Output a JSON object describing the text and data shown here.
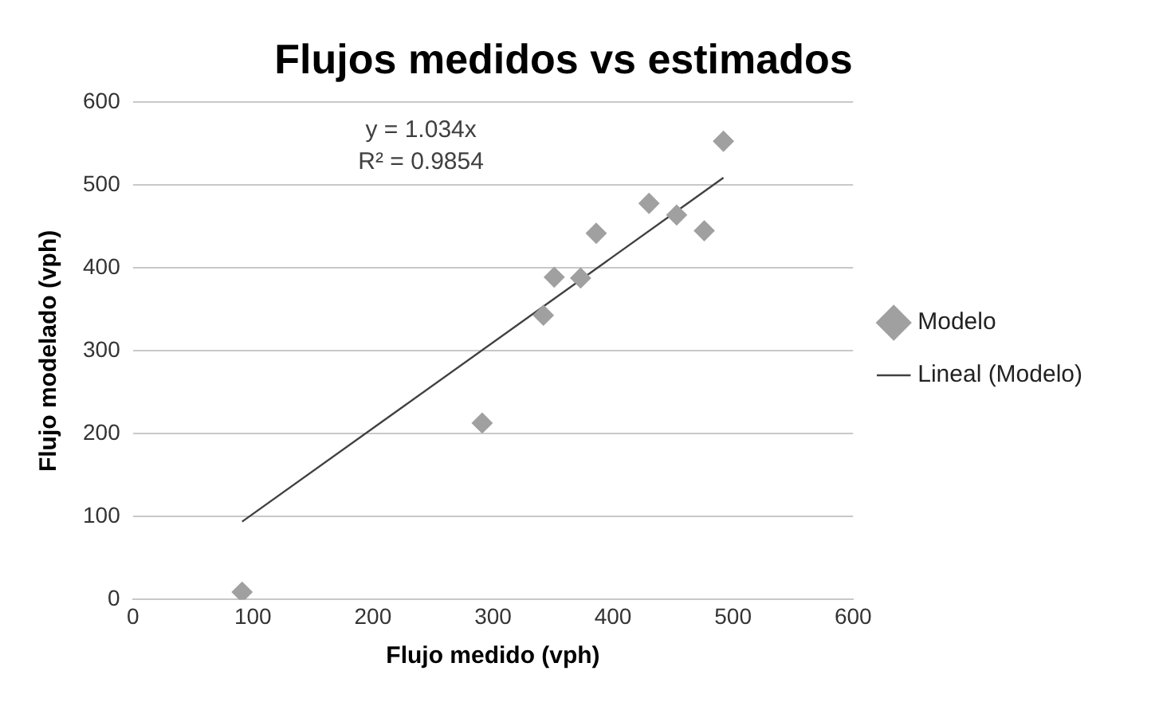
{
  "chart_data": {
    "type": "scatter",
    "title": "Flujos medidos vs estimados",
    "xlabel": "Flujo medido (vph)",
    "ylabel": "Flujo modelado (vph)",
    "annotations": [
      "y = 1.034x",
      "R² = 0.9854"
    ],
    "series": [
      {
        "name": "Modelo",
        "type": "scatter",
        "color": "#a0a0a0",
        "marker": "diamond",
        "x": [
          91,
          291,
          342,
          351,
          373,
          386,
          430,
          453,
          476,
          492
        ],
        "values": [
          9,
          213,
          343,
          389,
          388,
          442,
          478,
          464,
          445,
          553
        ]
      },
      {
        "name": "Lineal (Modelo)",
        "type": "line",
        "color": "#404040",
        "line_style": "solid",
        "x": [
          91,
          492
        ],
        "values": [
          94,
          509
        ]
      }
    ],
    "xlim": [
      0,
      600
    ],
    "xticks": [
      0,
      100,
      200,
      300,
      400,
      500,
      600
    ],
    "ylim": [
      0,
      600
    ],
    "yticks": [
      0,
      100,
      200,
      300,
      400,
      500,
      600
    ],
    "grid": "y",
    "legend": "right"
  }
}
